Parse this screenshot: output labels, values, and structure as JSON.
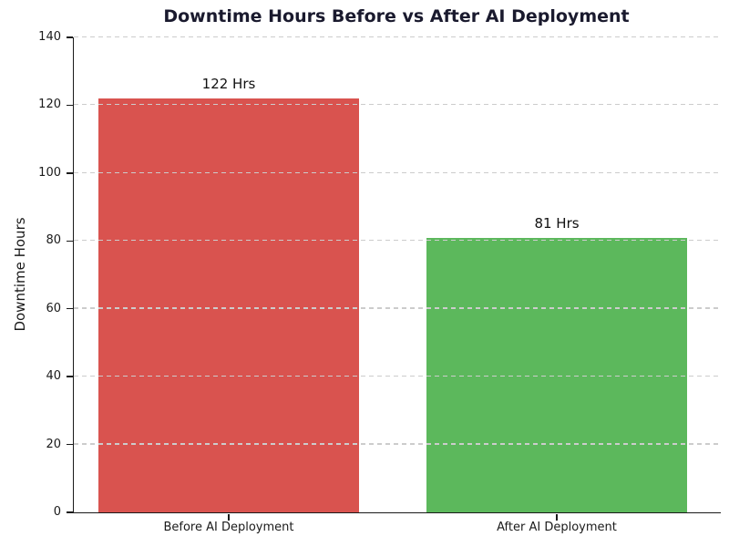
{
  "chart_data": {
    "type": "bar",
    "title": "Downtime Hours Before vs After AI Deployment",
    "xlabel": "",
    "ylabel": "Downtime Hours",
    "categories": [
      "Before AI Deployment",
      "After AI Deployment"
    ],
    "values": [
      122,
      81
    ],
    "bar_labels": [
      "122 Hrs",
      "81 Hrs"
    ],
    "bar_colors": [
      "#d9534f",
      "#5cb85c"
    ],
    "ylim": [
      0,
      140
    ],
    "yticks": [
      0,
      20,
      40,
      60,
      80,
      100,
      120,
      140
    ],
    "grid": "horizontal-dashed-over-bars",
    "grid_color": "#cccccc",
    "title_color": "#1a1a2e",
    "text_color": "#1a1a1a",
    "background_color": "#ffffff",
    "legend": "none"
  }
}
